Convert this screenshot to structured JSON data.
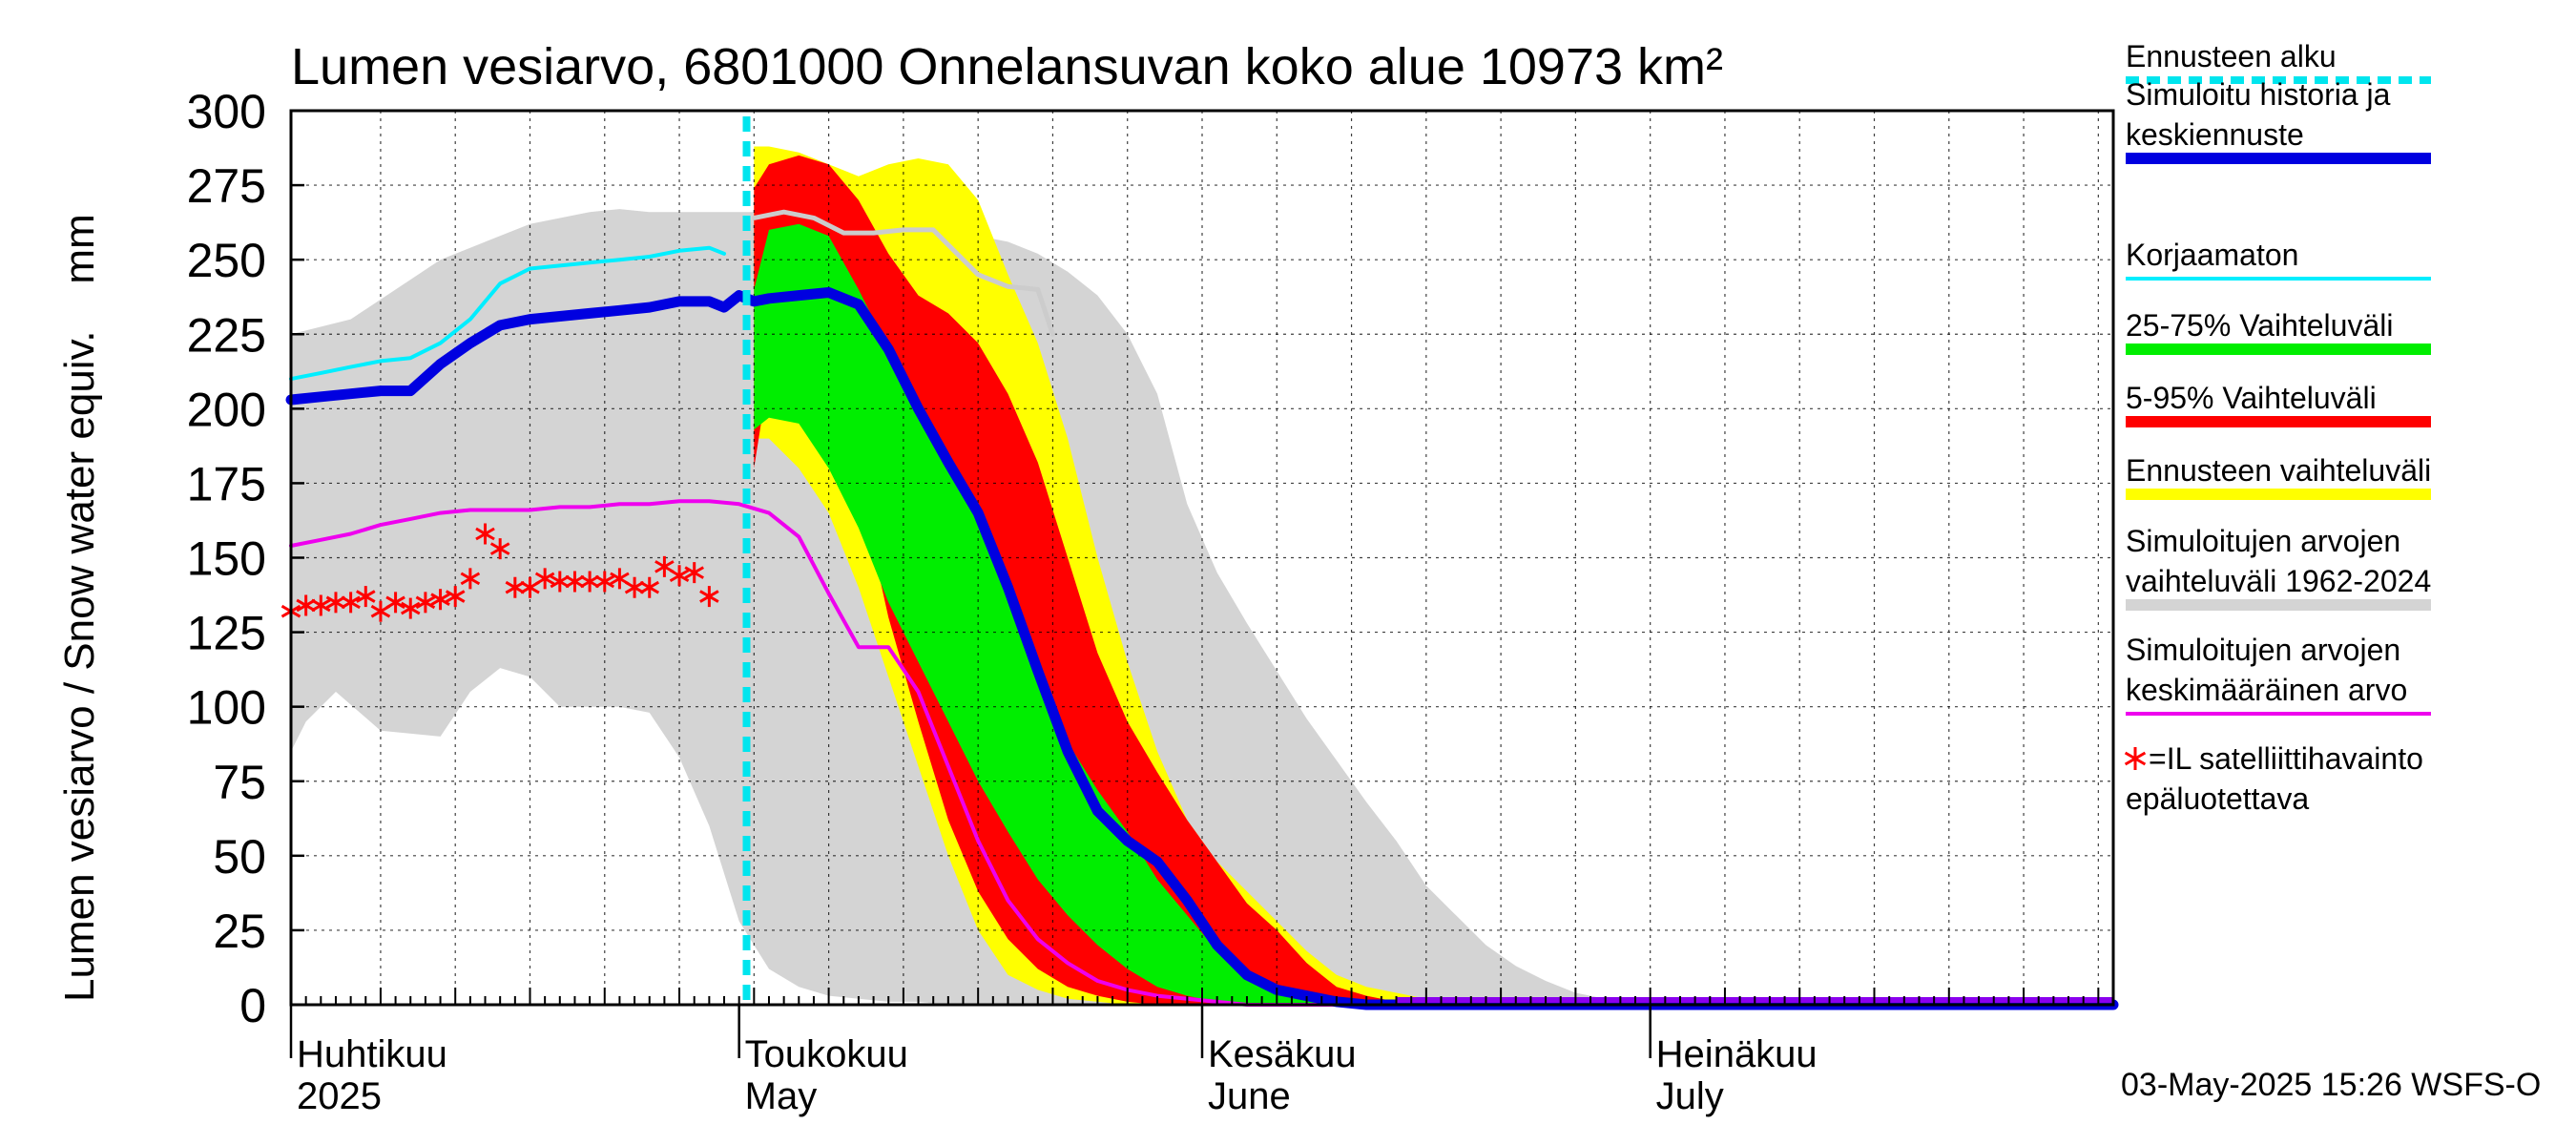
{
  "chart_data": {
    "type": "area",
    "title": "Lumen vesiarvo, 6801000 Onnelansuvan koko alue 10973 km²",
    "ylabel": "Lumen vesiarvo / Snow water equiv.    mm",
    "ylim": [
      0,
      300
    ],
    "yticks": [
      "0",
      "25",
      "50",
      "75",
      "100",
      "125",
      "150",
      "175",
      "200",
      "225",
      "250",
      "275",
      "300"
    ],
    "xrange_days": [
      0,
      122
    ],
    "x_unit": "days since 2025-04-01",
    "month_labels": [
      {
        "day": 0,
        "fi": "Huhtikuu",
        "en": "2025"
      },
      {
        "day": 30,
        "fi": "Toukokuu",
        "en": "May"
      },
      {
        "day": 61,
        "fi": "Kesäkuu",
        "en": "June"
      },
      {
        "day": 91,
        "fi": "Heinäkuu",
        "en": "July"
      }
    ],
    "forecast_start_day": 30.5,
    "timestamp": "03-May-2025 15:26 WSFS-O",
    "colors": {
      "forecast_start": "#00e5ee",
      "median": "#0000e0",
      "uncorrected": "#00eeff",
      "p25_75": "#00ee00",
      "p5_95": "#ff0000",
      "forecast_range": "#ffff00",
      "hist_range": "#d4d4d4",
      "hist_mean": "#ee00ee",
      "satellite": "#ff0000",
      "upper_line": "#cccccc"
    },
    "legend": [
      {
        "key": "forecast_start",
        "label": "Ennusteen alku"
      },
      {
        "key": "median",
        "label": "Simuloitu historia ja keskiennuste"
      },
      {
        "key": "uncorrected",
        "label": "Korjaamaton"
      },
      {
        "key": "p25_75",
        "label": "25-75% Vaihteluväli"
      },
      {
        "key": "p5_95",
        "label": "5-95% Vaihteluväli"
      },
      {
        "key": "forecast_range",
        "label": "Ennusteen vaihteluväli"
      },
      {
        "key": "hist_range",
        "label": "Simuloitujen arvojen vaihteluväli 1962-2024"
      },
      {
        "key": "hist_mean",
        "label": "Simuloitujen arvojen keskimääräinen arvo"
      },
      {
        "key": "satellite",
        "label": "=IL satelliittihavainto epäluotettava"
      }
    ],
    "series": [
      {
        "name": "hist_range_upper",
        "x": [
          0,
          4,
          10,
          16,
          20,
          22,
          24,
          26,
          28,
          30,
          31,
          34,
          38,
          40,
          44,
          46,
          48,
          50,
          52,
          54,
          56,
          58,
          60,
          62,
          64,
          66,
          68,
          70,
          72,
          74,
          76,
          78,
          80,
          82,
          84,
          86,
          88,
          90,
          122
        ],
        "y": [
          225,
          230,
          250,
          262,
          266,
          267,
          266,
          266,
          266,
          266,
          266,
          265,
          262,
          258,
          260,
          258,
          256,
          252,
          246,
          238,
          225,
          205,
          168,
          145,
          128,
          112,
          96,
          82,
          68,
          55,
          40,
          30,
          20,
          13,
          8,
          4,
          2,
          0,
          0
        ]
      },
      {
        "name": "hist_range_lower",
        "x": [
          0,
          1,
          3,
          6,
          10,
          12,
          14,
          16,
          18,
          20,
          22,
          24,
          26,
          28,
          30,
          32,
          34,
          36,
          38,
          40,
          42,
          44,
          46,
          48,
          50,
          52,
          54,
          56,
          58,
          60,
          122
        ],
        "y": [
          85,
          95,
          105,
          92,
          90,
          105,
          113,
          110,
          100,
          100,
          100,
          98,
          83,
          60,
          28,
          12,
          6,
          3,
          2,
          1,
          1,
          0,
          0,
          0,
          0,
          0,
          0,
          0,
          0,
          0,
          0
        ]
      },
      {
        "name": "forecast_range_upper",
        "x": [
          31,
          32,
          34,
          36,
          38,
          40,
          42,
          44,
          46,
          48,
          50,
          52,
          54,
          56,
          58,
          60,
          62,
          64,
          66,
          68,
          70,
          72,
          74,
          76,
          80,
          122
        ],
        "y": [
          288,
          288,
          286,
          282,
          278,
          282,
          284,
          282,
          270,
          245,
          222,
          190,
          150,
          115,
          85,
          62,
          48,
          38,
          28,
          18,
          10,
          6,
          4,
          2,
          0,
          0
        ]
      },
      {
        "name": "forecast_range_lower",
        "x": [
          31,
          32,
          34,
          36,
          38,
          40,
          42,
          44,
          46,
          48,
          50,
          52,
          54,
          56,
          58,
          60,
          122
        ],
        "y": [
          190,
          190,
          180,
          165,
          140,
          110,
          80,
          50,
          25,
          10,
          5,
          2,
          1,
          0,
          0,
          0,
          0
        ]
      },
      {
        "name": "p5_95_upper",
        "x": [
          31,
          32,
          34,
          36,
          38,
          40,
          42,
          44,
          46,
          48,
          50,
          52,
          54,
          56,
          58,
          60,
          62,
          64,
          66,
          68,
          70,
          72,
          74,
          76,
          122
        ],
        "y": [
          274,
          282,
          285,
          282,
          270,
          252,
          238,
          232,
          222,
          205,
          182,
          150,
          118,
          95,
          78,
          62,
          48,
          34,
          25,
          14,
          6,
          3,
          1,
          0,
          0
        ]
      },
      {
        "name": "p5_95_lower",
        "x": [
          31,
          32,
          34,
          36,
          38,
          40,
          42,
          44,
          46,
          48,
          50,
          52,
          54,
          56,
          58,
          60,
          62,
          122
        ],
        "y": [
          180,
          212,
          215,
          205,
          175,
          130,
          95,
          62,
          38,
          22,
          12,
          6,
          3,
          1,
          0,
          0,
          0,
          0
        ]
      },
      {
        "name": "p25_75_upper",
        "x": [
          31,
          32,
          34,
          36,
          38,
          40,
          42,
          44,
          46,
          48,
          50,
          52,
          54,
          56,
          58,
          60,
          62,
          64,
          66,
          68,
          70,
          72,
          122
        ],
        "y": [
          240,
          260,
          262,
          258,
          240,
          220,
          202,
          185,
          165,
          138,
          110,
          88,
          72,
          58,
          42,
          30,
          18,
          10,
          5,
          2,
          0,
          0,
          0
        ]
      },
      {
        "name": "p25_75_lower",
        "x": [
          31,
          32,
          34,
          36,
          38,
          40,
          42,
          44,
          46,
          48,
          50,
          52,
          54,
          56,
          58,
          60,
          62,
          64,
          66,
          122
        ],
        "y": [
          193,
          197,
          195,
          180,
          160,
          135,
          115,
          95,
          75,
          58,
          42,
          30,
          20,
          12,
          6,
          3,
          1,
          0,
          0,
          0
        ]
      },
      {
        "name": "median",
        "x": [
          0,
          2,
          4,
          6,
          8,
          10,
          12,
          14,
          16,
          18,
          20,
          22,
          24,
          26,
          28,
          29,
          30,
          31,
          32,
          34,
          36,
          38,
          40,
          42,
          44,
          46,
          48,
          50,
          52,
          54,
          56,
          58,
          60,
          62,
          64,
          66,
          68,
          70,
          72,
          74,
          122
        ],
        "y": [
          203,
          204,
          205,
          206,
          206,
          215,
          222,
          228,
          230,
          231,
          232,
          233,
          234,
          236,
          236,
          234,
          238,
          236,
          237,
          238,
          239,
          235,
          220,
          200,
          182,
          165,
          140,
          112,
          85,
          65,
          55,
          48,
          35,
          20,
          10,
          5,
          3,
          1,
          0,
          0,
          0
        ]
      },
      {
        "name": "uncorrected",
        "x": [
          0,
          2,
          4,
          6,
          8,
          10,
          12,
          14,
          16,
          18,
          20,
          22,
          24,
          26,
          28,
          29
        ],
        "y": [
          210,
          212,
          214,
          216,
          217,
          222,
          230,
          242,
          247,
          248,
          249,
          250,
          251,
          253,
          254,
          252
        ]
      },
      {
        "name": "upper_gray_line",
        "x": [
          31,
          33,
          35,
          37,
          39,
          41,
          43,
          44,
          46,
          48,
          50,
          51
        ],
        "y": [
          264,
          266,
          264,
          259,
          259,
          260,
          260,
          255,
          245,
          241,
          240,
          225
        ]
      },
      {
        "name": "hist_mean",
        "x": [
          0,
          2,
          4,
          6,
          8,
          10,
          12,
          14,
          16,
          18,
          20,
          22,
          24,
          26,
          28,
          30,
          32,
          34,
          36,
          38,
          40,
          42,
          44,
          46,
          48,
          50,
          52,
          54,
          56,
          58,
          60,
          62,
          64,
          66,
          68,
          70,
          122
        ],
        "y": [
          154,
          156,
          158,
          161,
          163,
          165,
          166,
          166,
          166,
          167,
          167,
          168,
          168,
          169,
          169,
          168,
          165,
          157,
          138,
          120,
          120,
          105,
          80,
          55,
          35,
          22,
          14,
          8,
          5,
          3,
          2,
          1,
          0,
          0,
          0,
          0,
          0
        ]
      },
      {
        "name": "satellite",
        "x": [
          0,
          1,
          2,
          3,
          4,
          5,
          6,
          7,
          8,
          9,
          10,
          11,
          12,
          13,
          14,
          15,
          16,
          17,
          18,
          19,
          20,
          21,
          22,
          23,
          24,
          25,
          26,
          27,
          28
        ],
        "y": [
          132,
          134,
          134,
          135,
          135,
          137,
          132,
          135,
          133,
          135,
          136,
          137,
          143,
          158,
          153,
          140,
          140,
          143,
          142,
          142,
          142,
          142,
          143,
          140,
          140,
          147,
          144,
          145,
          137
        ]
      }
    ]
  }
}
